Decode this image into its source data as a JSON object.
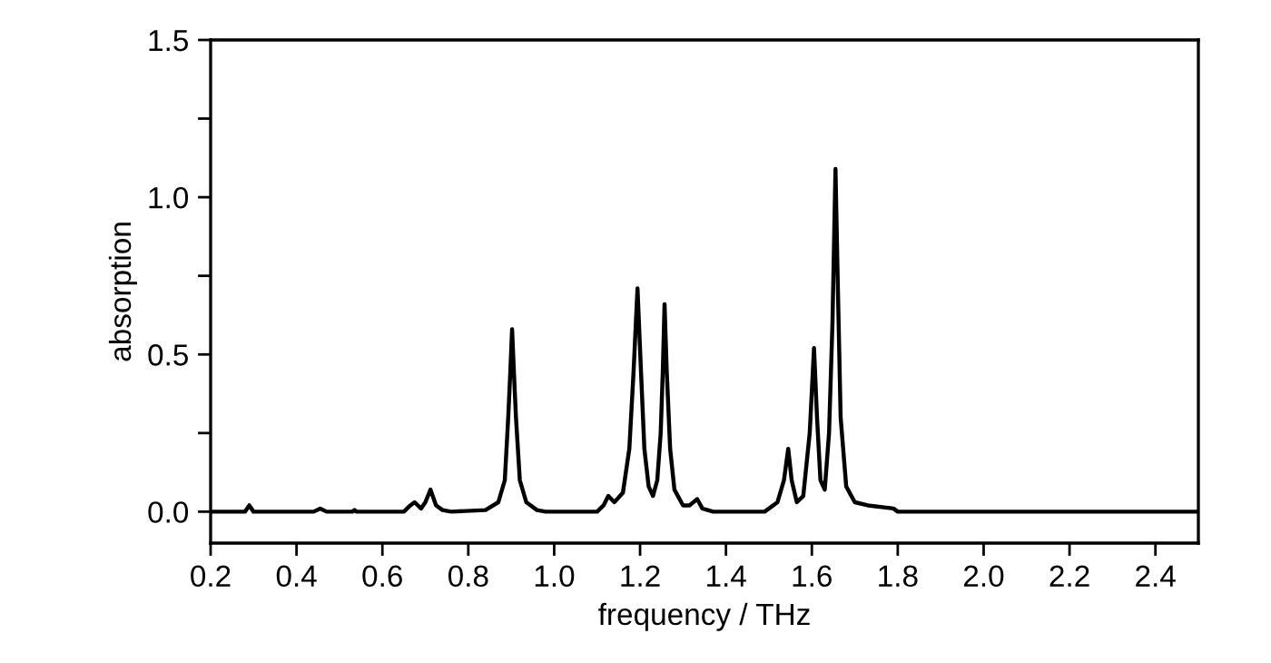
{
  "chart_data": {
    "type": "line",
    "xlabel": "frequency / THz",
    "ylabel": "absorption",
    "xlim": [
      0.2,
      2.5
    ],
    "ylim": [
      -0.1,
      1.5
    ],
    "xticks": [
      0.2,
      0.4,
      0.6,
      0.8,
      {
        "value": 1,
        "label": "1.0"
      },
      1.2,
      1.4,
      1.6,
      1.8,
      {
        "value": 2,
        "label": "2.0"
      },
      2.2,
      2.4
    ],
    "yticks": [
      {
        "value": 0,
        "label": "0.0"
      },
      {
        "value": 0.25,
        "label": null
      },
      0.5,
      {
        "value": 0.75,
        "label": null
      },
      {
        "value": 1,
        "label": "1.0"
      },
      {
        "value": 1.25,
        "label": null
      },
      1.5
    ],
    "grid": false,
    "legend": false,
    "marker": "none",
    "line_style": "solid",
    "series": [
      {
        "color": "#000000",
        "x": [
          0.2,
          0.28,
          0.29,
          0.3,
          0.44,
          0.455,
          0.47,
          0.53,
          0.535,
          0.54,
          0.65,
          0.665,
          0.675,
          0.69,
          0.7,
          0.712,
          0.725,
          0.74,
          0.76,
          0.84,
          0.87,
          0.885,
          0.893,
          0.898,
          0.902,
          0.906,
          0.911,
          0.92,
          0.935,
          0.96,
          0.98,
          1.1,
          1.115,
          1.126,
          1.14,
          1.16,
          1.175,
          1.185,
          1.194,
          1.202,
          1.21,
          1.22,
          1.23,
          1.24,
          1.248,
          1.253,
          1.257,
          1.262,
          1.27,
          1.28,
          1.3,
          1.315,
          1.333,
          1.345,
          1.37,
          1.49,
          1.52,
          1.535,
          1.545,
          1.553,
          1.565,
          1.58,
          1.595,
          1.605,
          1.612,
          1.62,
          1.63,
          1.64,
          1.648,
          1.655,
          1.66,
          1.667,
          1.68,
          1.7,
          1.73,
          1.79,
          1.8,
          2.5
        ],
        "values": [
          0,
          0,
          0.02,
          0,
          0,
          0.01,
          0,
          0,
          0.005,
          0,
          0,
          0.02,
          0.03,
          0.01,
          0.03,
          0.07,
          0.02,
          0.005,
          0,
          0.005,
          0.03,
          0.1,
          0.3,
          0.45,
          0.58,
          0.45,
          0.3,
          0.1,
          0.03,
          0.005,
          0,
          0,
          0.02,
          0.05,
          0.03,
          0.06,
          0.2,
          0.45,
          0.71,
          0.45,
          0.2,
          0.08,
          0.05,
          0.1,
          0.25,
          0.45,
          0.66,
          0.45,
          0.2,
          0.07,
          0.02,
          0.02,
          0.04,
          0.01,
          0,
          0,
          0.03,
          0.1,
          0.2,
          0.1,
          0.03,
          0.05,
          0.25,
          0.52,
          0.3,
          0.1,
          0.07,
          0.25,
          0.6,
          1.09,
          0.75,
          0.3,
          0.08,
          0.03,
          0.02,
          0.01,
          0,
          0
        ]
      }
    ]
  }
}
